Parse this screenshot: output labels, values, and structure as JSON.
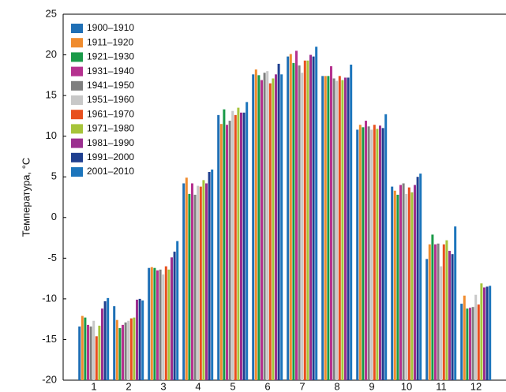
{
  "chart_data": {
    "type": "bar",
    "y_label": "Температура, °C",
    "categories": [
      "1",
      "2",
      "3",
      "4",
      "5",
      "6",
      "7",
      "8",
      "9",
      "10",
      "11",
      "12"
    ],
    "ylim": [
      -20,
      25
    ],
    "yticks": [
      -20,
      -15,
      -10,
      -5,
      0,
      5,
      10,
      15,
      20,
      25
    ],
    "legend": "upper-left",
    "series": [
      {
        "name": "1900–1910",
        "color": "#1f6fb5",
        "values": [
          -13.4,
          -10.9,
          -6.2,
          4.2,
          12.6,
          17.6,
          19.8,
          17.4,
          10.8,
          3.8,
          -5.1,
          -10.6
        ]
      },
      {
        "name": "1911–1920",
        "color": "#f08c2e",
        "values": [
          -12.1,
          -12.6,
          -6.1,
          4.9,
          11.5,
          18.2,
          20.1,
          17.4,
          11.4,
          3.3,
          -3.3,
          -9.6
        ]
      },
      {
        "name": "1921–1930",
        "color": "#1a9a48",
        "values": [
          -12.3,
          -13.6,
          -6.2,
          2.9,
          13.3,
          17.5,
          19.0,
          17.4,
          11.1,
          2.8,
          -2.1,
          -11.2
        ]
      },
      {
        "name": "1931–1940",
        "color": "#b5318f",
        "values": [
          -13.2,
          -13.2,
          -6.5,
          4.2,
          11.4,
          16.9,
          20.5,
          18.6,
          11.9,
          4.0,
          -3.3,
          -11.1
        ]
      },
      {
        "name": "1941–1950",
        "color": "#7f7f7f",
        "values": [
          -13.4,
          -12.9,
          -6.4,
          2.8,
          11.9,
          17.8,
          18.7,
          17.1,
          11.2,
          4.2,
          -3.2,
          -11.0
        ]
      },
      {
        "name": "1951–1960",
        "color": "#c8c8c8",
        "values": [
          -12.7,
          -12.7,
          -7.0,
          3.9,
          13.1,
          18.0,
          17.8,
          16.8,
          10.8,
          2.9,
          -6.0,
          -9.5
        ]
      },
      {
        "name": "1961–1970",
        "color": "#e8501e",
        "values": [
          -14.6,
          -12.4,
          -6.0,
          3.8,
          12.6,
          16.5,
          19.3,
          17.4,
          11.4,
          3.7,
          -3.3,
          -10.7
        ]
      },
      {
        "name": "1971–1980",
        "color": "#a6c43a",
        "values": [
          -13.3,
          -12.3,
          -6.4,
          4.6,
          13.5,
          17.1,
          19.3,
          16.9,
          10.9,
          3.1,
          -2.8,
          -8.1
        ]
      },
      {
        "name": "1981–1990",
        "color": "#9b2f8f",
        "values": [
          -11.2,
          -10.1,
          -4.9,
          4.2,
          12.9,
          17.6,
          20.0,
          17.2,
          11.3,
          4.0,
          -4.1,
          -8.6
        ]
      },
      {
        "name": "1991–2000",
        "color": "#1f3f8f",
        "values": [
          -10.3,
          -10.0,
          -4.2,
          5.6,
          12.9,
          18.9,
          19.8,
          17.2,
          11.0,
          5.0,
          -4.5,
          -8.5
        ]
      },
      {
        "name": "2001–2010",
        "color": "#1c75bc",
        "values": [
          -9.9,
          -10.2,
          -2.9,
          5.9,
          14.2,
          17.6,
          21.0,
          18.8,
          12.7,
          5.4,
          -1.1,
          -8.4
        ]
      }
    ]
  }
}
